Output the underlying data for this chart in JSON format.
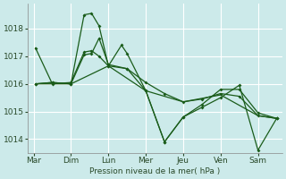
{
  "background_color": "#cceaea",
  "grid_color": "#ffffff",
  "line_color": "#1a5c1a",
  "x_labels": [
    "Mar",
    "Dim",
    "Lun",
    "Mer",
    "Jeu",
    "Ven",
    "Sam"
  ],
  "xlabel": "Pression niveau de la mer( hPa )",
  "ylim": [
    1013.5,
    1018.9
  ],
  "yticks": [
    1014,
    1015,
    1016,
    1017,
    1018
  ],
  "series": [
    {
      "x": [
        0.05,
        0.5,
        1.0,
        1.35,
        1.55,
        1.75,
        2.0,
        2.5,
        3.0,
        3.5,
        4.0,
        4.5,
        5.0,
        5.5,
        6.0,
        6.5
      ],
      "y": [
        1017.3,
        1016.0,
        1016.05,
        1017.15,
        1017.2,
        1017.0,
        1016.65,
        1016.55,
        1015.75,
        1013.9,
        1014.8,
        1015.25,
        1015.8,
        1015.8,
        1014.95,
        1014.75
      ],
      "marker": true
    },
    {
      "x": [
        0.05,
        0.5,
        1.0,
        1.35,
        1.55,
        1.75,
        2.0,
        2.5,
        3.0,
        3.5,
        4.0,
        4.5,
        5.0,
        5.5,
        6.0,
        6.5
      ],
      "y": [
        1016.0,
        1016.05,
        1016.0,
        1017.05,
        1017.1,
        1017.65,
        1016.7,
        1016.55,
        1016.05,
        1015.65,
        1015.35,
        1015.45,
        1015.65,
        1015.55,
        1014.85,
        1014.75
      ],
      "marker": true
    },
    {
      "x": [
        0.05,
        1.0,
        2.0,
        3.0,
        4.0,
        5.0,
        6.0,
        6.5
      ],
      "y": [
        1016.0,
        1016.0,
        1016.65,
        1015.75,
        1015.35,
        1015.6,
        1014.85,
        1014.75
      ],
      "marker": false
    },
    {
      "x": [
        0.05,
        0.5,
        1.0,
        1.35,
        1.55,
        1.75,
        2.0,
        2.35,
        2.5,
        3.0,
        3.5,
        4.0,
        4.5,
        5.0,
        5.5,
        6.0,
        6.5
      ],
      "y": [
        1016.0,
        1016.05,
        1016.0,
        1018.5,
        1018.55,
        1018.1,
        1016.65,
        1017.4,
        1017.1,
        1015.75,
        1013.9,
        1014.8,
        1015.15,
        1015.5,
        1015.95,
        1013.6,
        1014.75
      ],
      "marker": true
    }
  ]
}
